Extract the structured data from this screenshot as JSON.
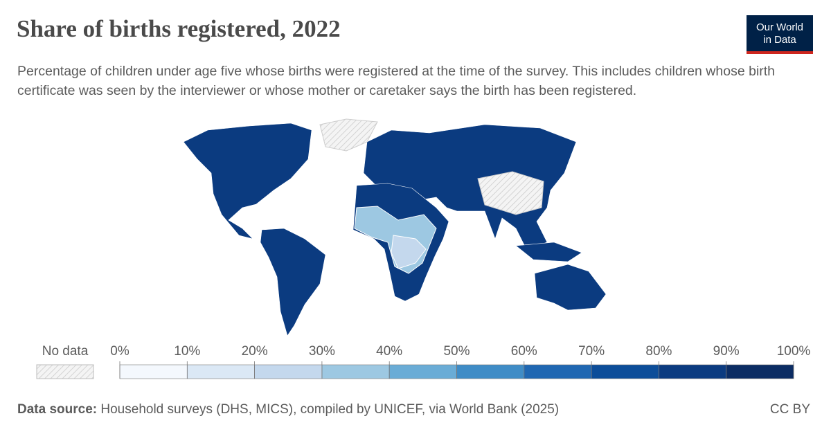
{
  "header": {
    "title": "Share of births registered, 2022",
    "subtitle": "Percentage of children under age five whose births were registered at the time of the survey. This includes children whose birth certificate was seen by the interviewer or whose mother or caretaker says the birth has been registered.",
    "logo": [
      "Our World",
      "in Data"
    ]
  },
  "legend": {
    "no_data": "No data",
    "ticks": [
      {
        "value": 0,
        "label": "0%"
      },
      {
        "value": 10,
        "label": "10%"
      },
      {
        "value": 20,
        "label": "20%"
      },
      {
        "value": 30,
        "label": "30%"
      },
      {
        "value": 40,
        "label": "40%"
      },
      {
        "value": 50,
        "label": "50%"
      },
      {
        "value": 60,
        "label": "60%"
      },
      {
        "value": 70,
        "label": "70%"
      },
      {
        "value": 80,
        "label": "80%"
      },
      {
        "value": 90,
        "label": "90%"
      },
      {
        "value": 100,
        "label": "100%"
      }
    ],
    "colors": [
      "#f4f8fd",
      "#dbe8f5",
      "#c4d8ed",
      "#9dc8e2",
      "#6aacd6",
      "#3f8cc6",
      "#1f67b2",
      "#0c4d99",
      "#0b3b80",
      "#0b2c63"
    ]
  },
  "footer": {
    "source_label": "Data source:",
    "source": "Household surveys (DHS, MICS), compiled by UNICEF, via World Bank (2025)",
    "license": "CC BY"
  }
}
